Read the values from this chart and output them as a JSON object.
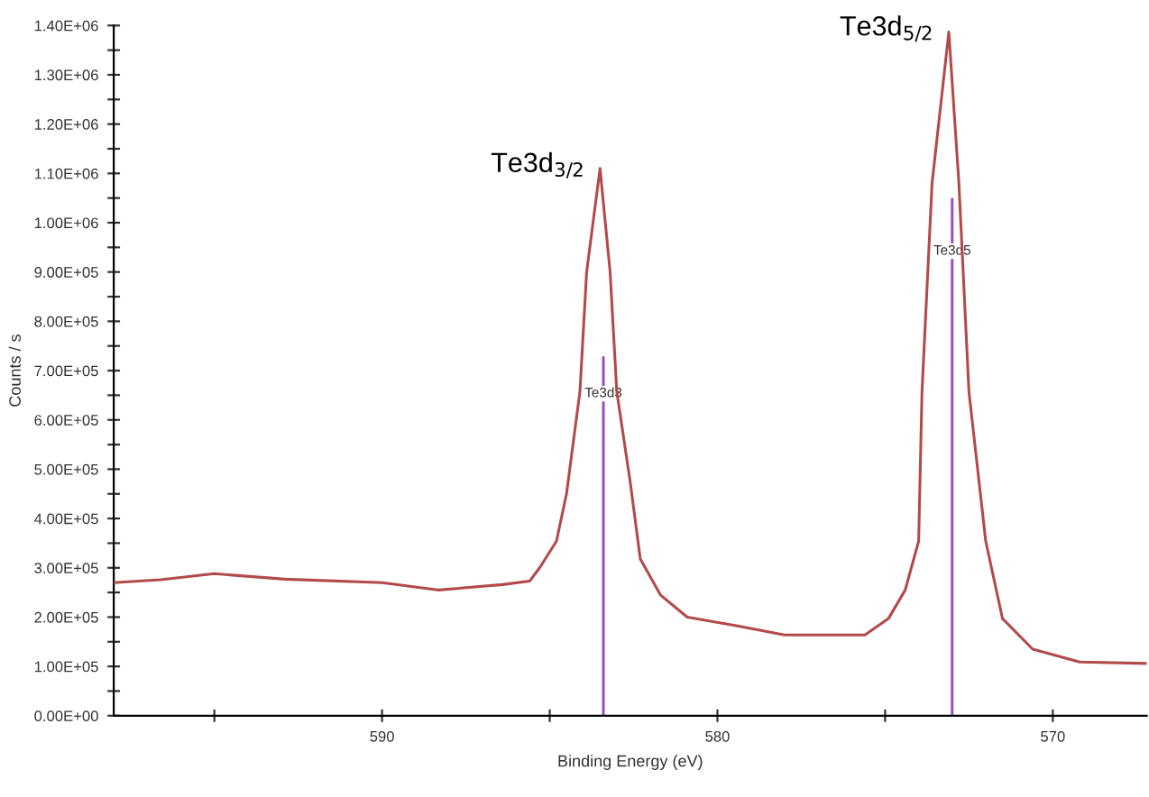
{
  "chart_data": {
    "type": "line",
    "xlabel": "Binding Energy (eV)",
    "ylabel": "Counts / s",
    "xlim": [
      598,
      567.2
    ],
    "xticks": [
      {
        "value": 595,
        "label": null
      },
      590,
      {
        "value": 585,
        "label": null
      },
      580,
      {
        "value": 575,
        "label": null
      },
      570
    ],
    "ylim": [
      0,
      1400000
    ],
    "yticks": [
      {
        "value": 0,
        "label": "0.00E+00"
      },
      {
        "value": 50000,
        "label": null
      },
      {
        "value": 100000,
        "label": "1.00E+05"
      },
      {
        "value": 150000,
        "label": null
      },
      {
        "value": 200000,
        "label": "2.00E+05"
      },
      {
        "value": 250000,
        "label": null
      },
      {
        "value": 300000,
        "label": "3.00E+05"
      },
      {
        "value": 350000,
        "label": null
      },
      {
        "value": 400000,
        "label": "4.00E+05"
      },
      {
        "value": 450000,
        "label": null
      },
      {
        "value": 500000,
        "label": "5.00E+05"
      },
      {
        "value": 550000,
        "label": null
      },
      {
        "value": 600000,
        "label": "6.00E+05"
      },
      {
        "value": 650000,
        "label": null
      },
      {
        "value": 700000,
        "label": "7.00E+05"
      },
      {
        "value": 750000,
        "label": null
      },
      {
        "value": 800000,
        "label": "8.00E+05"
      },
      {
        "value": 850000,
        "label": null
      },
      {
        "value": 900000,
        "label": "9.00E+05"
      },
      {
        "value": 950000,
        "label": null
      },
      {
        "value": 1000000,
        "label": "1.00E+06"
      },
      {
        "value": 1050000,
        "label": null
      },
      {
        "value": 1100000,
        "label": "1.10E+06"
      },
      {
        "value": 1150000,
        "label": null
      },
      {
        "value": 1200000,
        "label": "1.20E+06"
      },
      {
        "value": 1250000,
        "label": null
      },
      {
        "value": 1300000,
        "label": "1.30E+06"
      },
      {
        "value": 1350000,
        "label": null
      },
      {
        "value": 1400000,
        "label": "1.40E+06"
      }
    ],
    "grid": false,
    "legend": false,
    "marker": "none",
    "line_style": "solid",
    "series": [
      {
        "color": "#b24a4a",
        "x": [
          598.0,
          596.6,
          595.0,
          592.9,
          590.0,
          588.3,
          586.4,
          585.6,
          585.3,
          584.8,
          584.5,
          584.1,
          583.9,
          583.5,
          583.2,
          583.0,
          582.6,
          582.3,
          581.7,
          580.9,
          579.4,
          578.0,
          575.6,
          574.9,
          574.4,
          574.0,
          573.9,
          573.6,
          573.1,
          572.8,
          572.5,
          572.0,
          571.5,
          570.6,
          569.2,
          567.2
        ],
        "values": [
          270000,
          276000,
          288000,
          277000,
          270000,
          255000,
          266000,
          273000,
          300000,
          354000,
          450000,
          657000,
          900000,
          1110000,
          900000,
          657000,
          474000,
          318000,
          245000,
          200000,
          182000,
          164000,
          164000,
          197000,
          255000,
          354000,
          657000,
          1080000,
          1387000,
          1080000,
          657000,
          354000,
          197000,
          135000,
          109000,
          106000
        ]
      },
      {
        "name": "Te3d3",
        "color": "#9b4fc8",
        "x": [
          583.4,
          583.4
        ],
        "values": [
          0,
          726000
        ]
      },
      {
        "name": "Te3d5",
        "color": "#9b4fc8",
        "x": [
          573.0,
          573.0
        ],
        "values": [
          0,
          1047000
        ]
      }
    ],
    "annotations": [
      {
        "text": "Te3d$_{3/2}$",
        "x": 583.5,
        "y": 1110000
      },
      {
        "text": "Te3d$_{5/2}$",
        "x": 573.1,
        "y": 1387000
      }
    ]
  }
}
